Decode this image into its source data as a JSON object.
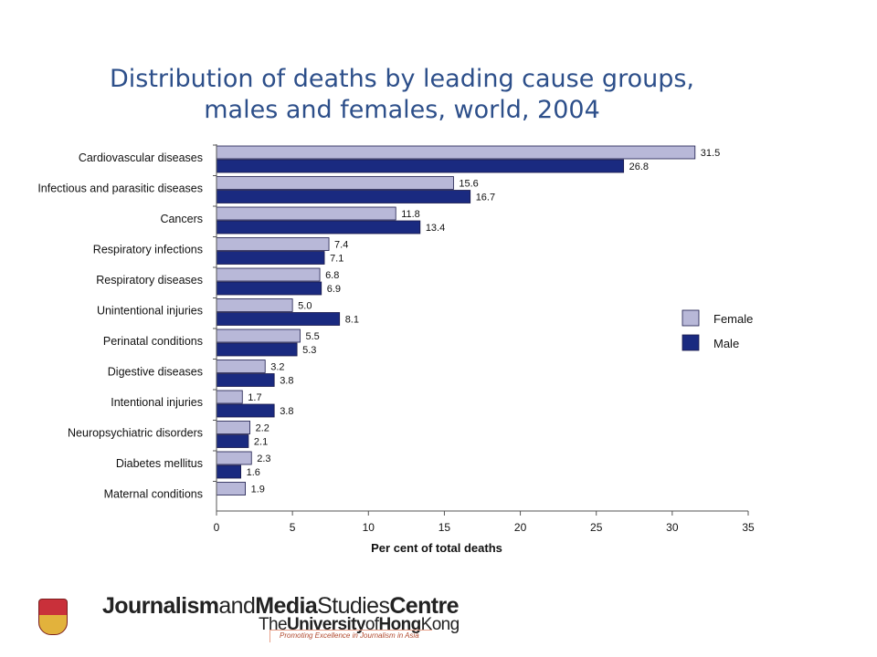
{
  "chart_data": {
    "type": "bar",
    "orientation": "horizontal",
    "title_line1": "Distribution of deaths by leading cause groups,",
    "title_line2": "males and females, world, 2004",
    "xlabel": "Per cent of total deaths",
    "ylabel": "",
    "xlim": [
      0,
      35
    ],
    "xticks": [
      0,
      5,
      10,
      15,
      20,
      25,
      30,
      35
    ],
    "grid": false,
    "legend_position": "right",
    "categories": [
      "Cardiovascular diseases",
      "Infectious and parasitic diseases",
      "Cancers",
      "Respiratory infections",
      "Respiratory diseases",
      "Unintentional injuries",
      "Perinatal conditions",
      "Digestive diseases",
      "Intentional injuries",
      "Neuropsychiatric disorders",
      "Diabetes mellitus",
      "Maternal conditions"
    ],
    "series": [
      {
        "name": "Female",
        "color": "#b8b8d8",
        "values": [
          31.5,
          15.6,
          11.8,
          7.4,
          6.8,
          5.0,
          5.5,
          3.2,
          1.7,
          2.2,
          2.3,
          1.9
        ],
        "labels": [
          "31.5",
          "15.6",
          "11.8",
          "7.4",
          "6.8",
          "5.0",
          "5.5",
          "3.2",
          "1.7",
          "2.2",
          "2.3",
          "1.9"
        ]
      },
      {
        "name": "Male",
        "color": "#1a2a80",
        "values": [
          26.8,
          16.7,
          13.4,
          7.1,
          6.9,
          8.1,
          5.3,
          3.8,
          3.8,
          2.1,
          1.6,
          null
        ],
        "labels": [
          "26.8",
          "16.7",
          "13.4",
          "7.1",
          "6.9",
          "8.1",
          "5.3",
          "3.8",
          "3.8",
          "2.1",
          "1.6",
          ""
        ]
      }
    ]
  },
  "footer": {
    "brand_part1": "Journalism",
    "brand_part2": "and",
    "brand_part3": "Media",
    "brand_part4": "Studies",
    "brand_part5": "Centre",
    "university_part1": "The",
    "university_part2": "University",
    "university_part3": "of",
    "university_part4": "Hong",
    "university_part5": "Kong",
    "tagline": "Promoting Excellence in Journalism in Asia",
    "crest_icon": "university-crest-icon"
  }
}
